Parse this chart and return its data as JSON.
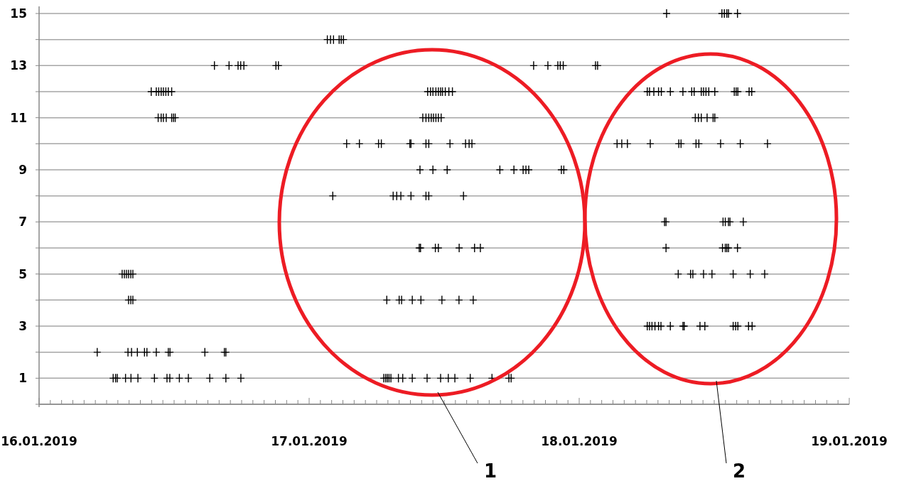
{
  "chart_data": {
    "type": "scatter",
    "marker": "cross",
    "grid": "y",
    "xlim": [
      "2019-01-16T00:00",
      "2019-01-19T00:00"
    ],
    "xticks": [
      {
        "value": "2019-01-16T00:00",
        "label": "16.01.2019"
      },
      {
        "value": "2019-01-16T01:00",
        "label": null
      },
      {
        "value": "2019-01-16T02:00",
        "label": null
      },
      {
        "value": "2019-01-16T03:00",
        "label": null
      },
      {
        "value": "2019-01-16T04:00",
        "label": null
      },
      {
        "value": "2019-01-16T05:00",
        "label": null
      },
      {
        "value": "2019-01-16T06:00",
        "label": null
      },
      {
        "value": "2019-01-16T07:00",
        "label": null
      },
      {
        "value": "2019-01-16T08:00",
        "label": null
      },
      {
        "value": "2019-01-16T09:00",
        "label": null
      },
      {
        "value": "2019-01-16T10:00",
        "label": null
      },
      {
        "value": "2019-01-16T11:00",
        "label": null
      },
      {
        "value": "2019-01-16T12:00",
        "label": null
      },
      {
        "value": "2019-01-16T13:00",
        "label": null
      },
      {
        "value": "2019-01-16T14:00",
        "label": null
      },
      {
        "value": "2019-01-16T15:00",
        "label": null
      },
      {
        "value": "2019-01-16T16:00",
        "label": null
      },
      {
        "value": "2019-01-16T17:00",
        "label": null
      },
      {
        "value": "2019-01-16T18:00",
        "label": null
      },
      {
        "value": "2019-01-16T19:00",
        "label": null
      },
      {
        "value": "2019-01-16T20:00",
        "label": null
      },
      {
        "value": "2019-01-16T21:00",
        "label": null
      },
      {
        "value": "2019-01-16T22:00",
        "label": null
      },
      {
        "value": "2019-01-16T23:00",
        "label": null
      },
      {
        "value": "2019-01-17T00:00",
        "label": "17.01.2019"
      },
      {
        "value": "2019-01-17T01:00",
        "label": null
      },
      {
        "value": "2019-01-17T02:00",
        "label": null
      },
      {
        "value": "2019-01-17T03:00",
        "label": null
      },
      {
        "value": "2019-01-17T04:00",
        "label": null
      },
      {
        "value": "2019-01-17T05:00",
        "label": null
      },
      {
        "value": "2019-01-17T06:00",
        "label": null
      },
      {
        "value": "2019-01-17T07:00",
        "label": null
      },
      {
        "value": "2019-01-17T08:00",
        "label": null
      },
      {
        "value": "2019-01-17T09:00",
        "label": null
      },
      {
        "value": "2019-01-17T10:00",
        "label": null
      },
      {
        "value": "2019-01-17T11:00",
        "label": null
      },
      {
        "value": "2019-01-17T12:00",
        "label": null
      },
      {
        "value": "2019-01-17T13:00",
        "label": null
      },
      {
        "value": "2019-01-17T14:00",
        "label": null
      },
      {
        "value": "2019-01-17T15:00",
        "label": null
      },
      {
        "value": "2019-01-17T16:00",
        "label": null
      },
      {
        "value": "2019-01-17T17:00",
        "label": null
      },
      {
        "value": "2019-01-17T18:00",
        "label": null
      },
      {
        "value": "2019-01-17T19:00",
        "label": null
      },
      {
        "value": "2019-01-17T20:00",
        "label": null
      },
      {
        "value": "2019-01-17T21:00",
        "label": null
      },
      {
        "value": "2019-01-17T22:00",
        "label": null
      },
      {
        "value": "2019-01-17T23:00",
        "label": null
      },
      {
        "value": "2019-01-18T00:00",
        "label": "18.01.2019"
      },
      {
        "value": "2019-01-18T01:00",
        "label": null
      },
      {
        "value": "2019-01-18T02:00",
        "label": null
      },
      {
        "value": "2019-01-18T03:00",
        "label": null
      },
      {
        "value": "2019-01-18T04:00",
        "label": null
      },
      {
        "value": "2019-01-18T05:00",
        "label": null
      },
      {
        "value": "2019-01-18T06:00",
        "label": null
      },
      {
        "value": "2019-01-18T07:00",
        "label": null
      },
      {
        "value": "2019-01-18T08:00",
        "label": null
      },
      {
        "value": "2019-01-18T09:00",
        "label": null
      },
      {
        "value": "2019-01-18T10:00",
        "label": null
      },
      {
        "value": "2019-01-18T11:00",
        "label": null
      },
      {
        "value": "2019-01-18T12:00",
        "label": null
      },
      {
        "value": "2019-01-18T13:00",
        "label": null
      },
      {
        "value": "2019-01-18T14:00",
        "label": null
      },
      {
        "value": "2019-01-18T15:00",
        "label": null
      },
      {
        "value": "2019-01-18T16:00",
        "label": null
      },
      {
        "value": "2019-01-18T17:00",
        "label": null
      },
      {
        "value": "2019-01-18T18:00",
        "label": null
      },
      {
        "value": "2019-01-18T19:00",
        "label": null
      },
      {
        "value": "2019-01-18T20:00",
        "label": null
      },
      {
        "value": "2019-01-18T21:00",
        "label": null
      },
      {
        "value": "2019-01-18T22:00",
        "label": null
      },
      {
        "value": "2019-01-18T23:00",
        "label": null
      },
      {
        "value": "2019-01-19T00:00",
        "label": "19.01.2019"
      }
    ],
    "ylim": [
      0,
      15
    ],
    "yticks": [
      {
        "value": 0,
        "label": null
      },
      1,
      {
        "value": 2,
        "label": null
      },
      3,
      {
        "value": 4,
        "label": null
      },
      5,
      {
        "value": 6,
        "label": null
      },
      7,
      {
        "value": 8,
        "label": null
      },
      9,
      {
        "value": 10,
        "label": null
      },
      11,
      {
        "value": 12,
        "label": null
      },
      13,
      {
        "value": 14,
        "label": null
      },
      15
    ],
    "annotations": [
      "1",
      "2"
    ],
    "series": [
      {
        "color": "#000000",
        "x": [
          "2019-01-18T07:46",
          "2019-01-18T12:41",
          "2019-01-18T12:54",
          "2019-01-18T13:07",
          "2019-01-18T13:16",
          "2019-01-18T14:04"
        ],
        "values": [
          15,
          15,
          15,
          15,
          15,
          15
        ]
      },
      {
        "color": "#000000",
        "x": [
          "2019-01-17T01:37",
          "2019-01-17T01:54",
          "2019-01-17T02:10",
          "2019-01-17T02:40",
          "2019-01-17T02:51",
          "2019-01-17T03:03"
        ],
        "values": [
          14,
          14,
          14,
          14,
          14,
          14
        ]
      },
      {
        "color": "#000000",
        "x": [
          "2019-01-16T15:35",
          "2019-01-16T16:53",
          "2019-01-16T17:41",
          "2019-01-16T17:55",
          "2019-01-16T18:12",
          "2019-01-16T21:03",
          "2019-01-16T21:16",
          "2019-01-17T19:57",
          "2019-01-17T21:13",
          "2019-01-17T22:06",
          "2019-01-17T22:19",
          "2019-01-17T22:35",
          "2019-01-18T01:27",
          "2019-01-18T01:38"
        ],
        "values": [
          13,
          13,
          13,
          13,
          13,
          13,
          13,
          13,
          13,
          13,
          13,
          13,
          13,
          13
        ]
      },
      {
        "color": "#000000",
        "x": [
          "2019-01-16T09:58",
          "2019-01-16T10:25",
          "2019-01-16T10:38",
          "2019-01-16T10:51",
          "2019-01-16T11:03",
          "2019-01-16T11:16",
          "2019-01-16T11:29",
          "2019-01-16T11:47",
          "2019-01-17T10:32",
          "2019-01-17T10:47",
          "2019-01-17T11:00",
          "2019-01-17T11:16",
          "2019-01-17T11:29",
          "2019-01-17T11:41",
          "2019-01-17T11:51",
          "2019-01-17T12:06",
          "2019-01-17T12:25",
          "2019-01-17T12:44",
          "2019-01-18T06:03",
          "2019-01-18T06:15",
          "2019-01-18T06:38",
          "2019-01-18T07:03",
          "2019-01-18T07:18",
          "2019-01-18T08:06",
          "2019-01-18T09:13",
          "2019-01-18T10:00",
          "2019-01-18T10:13",
          "2019-01-18T10:51",
          "2019-01-18T11:03",
          "2019-01-18T11:16",
          "2019-01-18T11:31",
          "2019-01-18T12:03",
          "2019-01-18T13:47",
          "2019-01-18T13:57",
          "2019-01-18T14:06",
          "2019-01-18T15:06",
          "2019-01-18T15:20"
        ],
        "values": [
          12,
          12,
          12,
          12,
          12,
          12,
          12,
          12,
          12,
          12,
          12,
          12,
          12,
          12,
          12,
          12,
          12,
          12,
          12,
          12,
          12,
          12,
          12,
          12,
          12,
          12,
          12,
          12,
          12,
          12,
          12,
          12,
          12,
          12,
          12,
          12,
          12
        ]
      },
      {
        "color": "#000000",
        "x": [
          "2019-01-16T10:35",
          "2019-01-16T10:51",
          "2019-01-16T11:03",
          "2019-01-16T11:18",
          "2019-01-16T11:47",
          "2019-01-16T11:57",
          "2019-01-16T12:06",
          "2019-01-17T10:06",
          "2019-01-17T10:23",
          "2019-01-17T10:38",
          "2019-01-17T10:51",
          "2019-01-17T11:03",
          "2019-01-17T11:16",
          "2019-01-17T11:29",
          "2019-01-17T11:44",
          "2019-01-18T10:19",
          "2019-01-18T10:36",
          "2019-01-18T10:51",
          "2019-01-18T11:22",
          "2019-01-18T11:54",
          "2019-01-18T12:03"
        ],
        "values": [
          11,
          11,
          11,
          11,
          11,
          11,
          11,
          11,
          11,
          11,
          11,
          11,
          11,
          11,
          11,
          11,
          11,
          11,
          11,
          11,
          11
        ]
      },
      {
        "color": "#000000",
        "x": [
          "2019-01-17T03:20",
          "2019-01-17T04:28",
          "2019-01-17T06:10",
          "2019-01-17T06:25",
          "2019-01-17T08:57",
          "2019-01-17T09:03",
          "2019-01-17T10:23",
          "2019-01-17T10:38",
          "2019-01-17T12:31",
          "2019-01-17T13:54",
          "2019-01-17T14:13",
          "2019-01-17T14:28",
          "2019-01-18T03:22",
          "2019-01-18T03:47",
          "2019-01-18T04:17",
          "2019-01-18T06:19",
          "2019-01-18T08:51",
          "2019-01-18T09:03",
          "2019-01-18T10:23",
          "2019-01-18T10:38",
          "2019-01-18T12:34",
          "2019-01-18T14:19",
          "2019-01-18T16:44"
        ],
        "values": [
          10,
          10,
          10,
          10,
          10,
          10,
          10,
          10,
          10,
          10,
          10,
          10,
          10,
          10,
          10,
          10,
          10,
          10,
          10,
          10,
          10,
          10,
          10
        ]
      },
      {
        "color": "#000000",
        "x": [
          "2019-01-17T09:51",
          "2019-01-17T11:00",
          "2019-01-17T12:16",
          "2019-01-17T16:57",
          "2019-01-17T18:12",
          "2019-01-17T19:01",
          "2019-01-17T19:16",
          "2019-01-17T19:31",
          "2019-01-17T22:25",
          "2019-01-17T22:38"
        ],
        "values": [
          9,
          9,
          9,
          9,
          9,
          9,
          9,
          9,
          9,
          9
        ]
      },
      {
        "color": "#000000",
        "x": [
          "2019-01-17T02:06",
          "2019-01-17T07:28",
          "2019-01-17T07:47",
          "2019-01-17T08:09",
          "2019-01-17T09:03",
          "2019-01-17T10:23",
          "2019-01-17T10:38",
          "2019-01-17T13:43"
        ],
        "values": [
          8,
          8,
          8,
          8,
          8,
          8,
          8,
          8
        ]
      },
      {
        "color": "#000000",
        "x": [
          "2019-01-18T07:35",
          "2019-01-18T07:43",
          "2019-01-18T12:47",
          "2019-01-18T12:59",
          "2019-01-18T13:16",
          "2019-01-18T13:24",
          "2019-01-18T14:35"
        ],
        "values": [
          7,
          7,
          7,
          7,
          7,
          7,
          7
        ]
      },
      {
        "color": "#000000",
        "x": [
          "2019-01-17T09:47",
          "2019-01-17T09:54",
          "2019-01-17T11:13",
          "2019-01-17T11:29",
          "2019-01-17T13:20",
          "2019-01-17T14:42",
          "2019-01-17T15:13",
          "2019-01-18T07:43",
          "2019-01-18T12:44",
          "2019-01-18T12:59",
          "2019-01-18T13:07",
          "2019-01-18T13:16",
          "2019-01-18T14:04"
        ],
        "values": [
          6,
          6,
          6,
          6,
          6,
          6,
          6,
          6,
          6,
          6,
          6,
          6,
          6
        ]
      },
      {
        "color": "#000000",
        "x": [
          "2019-01-16T07:23",
          "2019-01-16T07:35",
          "2019-01-16T07:46",
          "2019-01-16T07:57",
          "2019-01-16T08:09",
          "2019-01-16T08:20",
          "2019-01-18T08:48",
          "2019-01-18T09:54",
          "2019-01-18T10:06",
          "2019-01-18T11:03",
          "2019-01-18T11:48",
          "2019-01-18T13:41",
          "2019-01-18T15:12",
          "2019-01-18T16:29"
        ],
        "values": [
          5,
          5,
          5,
          5,
          5,
          5,
          5,
          5,
          5,
          5,
          5,
          5,
          5,
          5
        ]
      },
      {
        "color": "#000000",
        "x": [
          "2019-01-16T07:57",
          "2019-01-16T08:09",
          "2019-01-16T08:20",
          "2019-01-17T06:54",
          "2019-01-17T08:00",
          "2019-01-17T08:13",
          "2019-01-17T09:10",
          "2019-01-17T09:56",
          "2019-01-17T11:48",
          "2019-01-17T13:19",
          "2019-01-17T14:35"
        ],
        "values": [
          4,
          4,
          4,
          4,
          4,
          4,
          4,
          4,
          4,
          4,
          4
        ]
      },
      {
        "color": "#000000",
        "x": [
          "2019-01-18T06:03",
          "2019-01-18T06:15",
          "2019-01-18T06:28",
          "2019-01-18T06:44",
          "2019-01-18T07:03",
          "2019-01-18T07:16",
          "2019-01-18T08:06",
          "2019-01-18T09:13",
          "2019-01-18T09:20",
          "2019-01-18T10:44",
          "2019-01-18T11:10",
          "2019-01-18T13:41",
          "2019-01-18T13:54",
          "2019-01-18T14:06",
          "2019-01-18T15:03",
          "2019-01-18T15:22"
        ],
        "values": [
          3,
          3,
          3,
          3,
          3,
          3,
          3,
          3,
          3,
          3,
          3,
          3,
          3,
          3,
          3,
          3
        ]
      },
      {
        "color": "#000000",
        "x": [
          "2019-01-16T05:10",
          "2019-01-16T07:54",
          "2019-01-16T08:13",
          "2019-01-16T08:44",
          "2019-01-16T09:22",
          "2019-01-16T09:35",
          "2019-01-16T10:25",
          "2019-01-16T11:29",
          "2019-01-16T11:38",
          "2019-01-16T14:44",
          "2019-01-16T16:28",
          "2019-01-16T16:36"
        ],
        "values": [
          2,
          2,
          2,
          2,
          2,
          2,
          2,
          2,
          2,
          2,
          2,
          2
        ]
      },
      {
        "color": "#000000",
        "x": [
          "2019-01-16T06:35",
          "2019-01-16T06:48",
          "2019-01-16T06:57",
          "2019-01-16T07:41",
          "2019-01-16T08:10",
          "2019-01-16T08:47",
          "2019-01-16T10:15",
          "2019-01-16T11:22",
          "2019-01-16T11:37",
          "2019-01-16T12:28",
          "2019-01-16T13:16",
          "2019-01-16T15:10",
          "2019-01-16T16:36",
          "2019-01-16T17:56",
          "2019-01-17T06:38",
          "2019-01-17T06:48",
          "2019-01-17T06:57",
          "2019-01-17T07:06",
          "2019-01-17T07:16",
          "2019-01-17T07:56",
          "2019-01-17T08:19",
          "2019-01-17T09:10",
          "2019-01-17T10:29",
          "2019-01-17T11:41",
          "2019-01-17T12:22",
          "2019-01-17T12:57",
          "2019-01-17T14:19",
          "2019-01-17T16:15",
          "2019-01-17T17:45",
          "2019-01-17T17:57"
        ],
        "values": [
          1,
          1,
          1,
          1,
          1,
          1,
          1,
          1,
          1,
          1,
          1,
          1,
          1,
          1,
          1,
          1,
          1,
          1,
          1,
          1,
          1,
          1,
          1,
          1,
          1,
          1,
          1,
          1,
          1,
          1
        ]
      }
    ]
  }
}
